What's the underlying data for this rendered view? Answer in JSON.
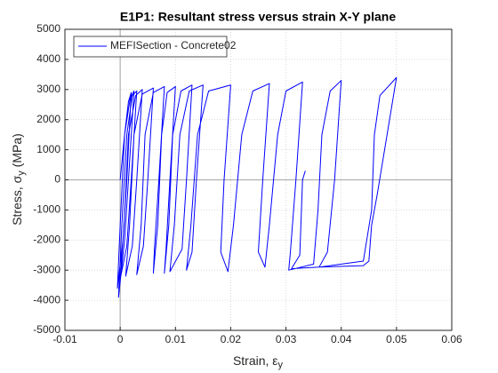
{
  "chart_data": {
    "type": "line",
    "title": "E1P1: Resultant stress versus strain X-Y plane",
    "xlabel": [
      "Strain, ε",
      "y"
    ],
    "ylabel": [
      "Stress, σ",
      "y",
      " (MPa)"
    ],
    "xlim": [
      -0.01,
      0.06
    ],
    "xticks": [
      -0.01,
      0,
      0.01,
      0.02,
      0.03,
      0.04,
      0.05,
      0.06
    ],
    "ylim": [
      -5000,
      5000
    ],
    "yticks": [
      -5000,
      -4000,
      -3000,
      -2000,
      -1000,
      0,
      1000,
      2000,
      3000,
      4000,
      5000
    ],
    "grid": true,
    "legend": "upper left",
    "x": [
      0,
      0.0008,
      0.0015,
      0.002,
      0.0012,
      0.0005,
      -0.0005,
      0,
      0.0008,
      0.0018,
      0.0025,
      0.0015,
      0.0008,
      -0.0003,
      0.0003,
      0.0012,
      0.0022,
      0.003,
      0.002,
      0.0012,
      0,
      0.0007,
      0.0015,
      0.0028,
      0.004,
      0.003,
      0.0022,
      0.001,
      0.0017,
      0.0025,
      0.004,
      0.006,
      0.005,
      0.0042,
      0.003,
      0.0038,
      0.0045,
      0.006,
      0.008,
      0.007,
      0.0062,
      0.006,
      0.0068,
      0.0075,
      0.0085,
      0.01,
      0.009,
      0.0083,
      0.008,
      0.0088,
      0.0095,
      0.011,
      0.013,
      0.012,
      0.0112,
      0.009,
      0.0098,
      0.0108,
      0.0125,
      0.015,
      0.0138,
      0.013,
      0.012,
      0.0128,
      0.014,
      0.016,
      0.02,
      0.0188,
      0.0182,
      0.0195,
      0.0205,
      0.022,
      0.024,
      0.027,
      0.0258,
      0.025,
      0.0262,
      0.027,
      0.0285,
      0.03,
      0.033,
      0.0318,
      0.0308,
      0.0305,
      0.035,
      0.0358,
      0.0365,
      0.038,
      0.04,
      0.0388,
      0.0375,
      0.036,
      0.044,
      0.0455,
      0.046,
      0.047,
      0.05,
      0.0465,
      0.0455,
      0.045,
      0.044,
      0.036,
      0.031,
      0.0325,
      0.033,
      0.0335
    ],
    "series": [
      {
        "name": "MEFISection - Concrete02",
        "color": "#0000ff",
        "values": [
          0,
          1500,
          2600,
          2900,
          0,
          -2000,
          -3600,
          -1500,
          1500,
          2700,
          2950,
          0,
          -2000,
          -3900,
          -1500,
          1500,
          2800,
          2950,
          0,
          -2200,
          -3300,
          -1500,
          1500,
          2800,
          3000,
          0,
          -2200,
          -3200,
          -1500,
          1500,
          2850,
          3050,
          0,
          -2200,
          -3150,
          -1500,
          1500,
          2900,
          3100,
          0,
          -2300,
          -3100,
          -1500,
          1500,
          2900,
          3100,
          0,
          -2300,
          -3100,
          -1500,
          1500,
          2950,
          3150,
          0,
          -2300,
          -3050,
          -1500,
          1500,
          2950,
          3150,
          0,
          -2400,
          -3000,
          -1500,
          1500,
          2950,
          3150,
          0,
          -2400,
          -3050,
          -1500,
          1500,
          2950,
          3200,
          0,
          -2400,
          -2900,
          -1500,
          1500,
          2950,
          3250,
          0,
          -2400,
          -3000,
          -2800,
          -1000,
          1500,
          2950,
          3300,
          0,
          -2400,
          -2900,
          -2700,
          -1000,
          1500,
          2800,
          3400,
          -500,
          -1500,
          -2700,
          -2850,
          -2900,
          -2950,
          -2500,
          0,
          300
        ]
      }
    ]
  }
}
